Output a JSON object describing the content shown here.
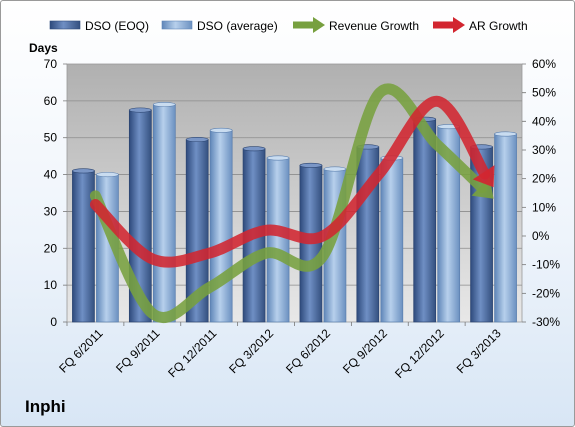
{
  "chart_data": {
    "type": "bar",
    "categories": [
      "FQ 6/2011",
      "FQ 9/2011",
      "FQ 12/2011",
      "FQ 3/2012",
      "FQ 6/2012",
      "FQ 9/2012",
      "FQ 12/2012",
      "FQ 3/2013"
    ],
    "series": [
      {
        "name": "DSO (EOQ)",
        "type": "bar",
        "axis": "left",
        "values": [
          41,
          57.5,
          49.5,
          47,
          42.5,
          47.5,
          55,
          47.5
        ],
        "color": "#4f6fa3"
      },
      {
        "name": "DSO (average)",
        "type": "bar",
        "axis": "left",
        "values": [
          40,
          59,
          52,
          44.5,
          41.5,
          44.5,
          53,
          51
        ],
        "color": "#8eb2d8"
      },
      {
        "name": "Revenue Growth",
        "type": "line",
        "axis": "right",
        "values": [
          0.14,
          -0.27,
          -0.18,
          -0.06,
          -0.07,
          0.5,
          0.32,
          0.13
        ],
        "color": "#77a03f"
      },
      {
        "name": "AR Growth",
        "type": "line",
        "axis": "right",
        "values": [
          0.11,
          -0.08,
          -0.06,
          0.02,
          0.0,
          0.22,
          0.47,
          0.17
        ],
        "color": "#d22630"
      }
    ],
    "ylabel": "Days",
    "ylim": [
      0,
      70
    ],
    "yticks": [
      "0",
      "10",
      "20",
      "30",
      "40",
      "50",
      "60",
      "70"
    ],
    "y2lim": [
      -0.3,
      0.6
    ],
    "y2ticks": [
      "-30%",
      "-20%",
      "-10%",
      "0%",
      "10%",
      "20%",
      "30%",
      "40%",
      "50%",
      "60%"
    ],
    "grid": true,
    "legend": "top",
    "company": "Inphi"
  }
}
